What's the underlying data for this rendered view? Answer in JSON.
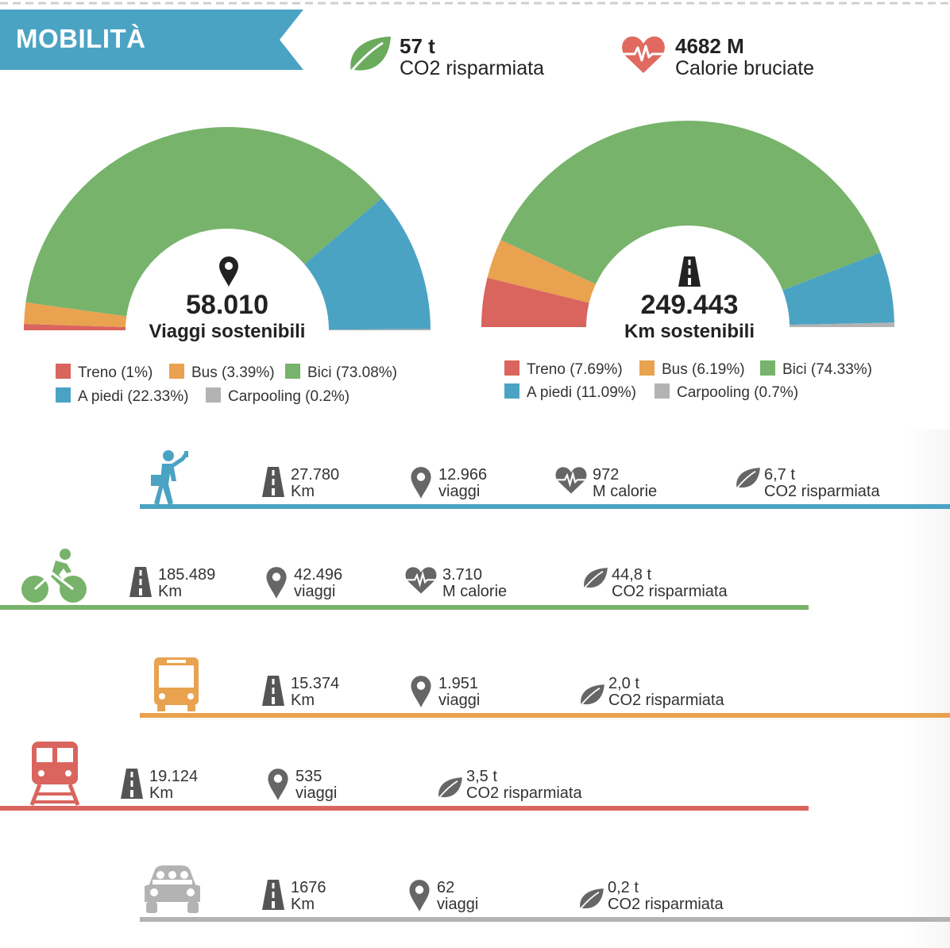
{
  "header": {
    "title": "MOBILITÀ",
    "banner_color": "#4ba3c3",
    "co2": {
      "value": "57 t",
      "label": "CO2 risparmiata",
      "icon": "leaf-icon",
      "color": "#6aab5c"
    },
    "calories": {
      "value": "4682 M",
      "label": "Calorie bruciate",
      "icon": "heart-pulse-icon",
      "color": "#e06a5f"
    }
  },
  "chart_data": [
    {
      "type": "pie",
      "style": "semi-donut",
      "center_value": "58.010",
      "center_label": "Viaggi sostenibili",
      "center_icon": "map-pin-icon",
      "slices": [
        {
          "label": "Treno (1%)",
          "value": 1,
          "color": "#d9655e"
        },
        {
          "label": "Bus (3.39%)",
          "value": 3.39,
          "color": "#e9a24f"
        },
        {
          "label": "Bici (73.08%)",
          "value": 73.08,
          "color": "#77b36a"
        },
        {
          "label": "A piedi (22.33%)",
          "value": 22.33,
          "color": "#4ba3c3"
        },
        {
          "label": "Carpooling (0.2%)",
          "value": 0.2,
          "color": "#b3b3b3"
        }
      ]
    },
    {
      "type": "pie",
      "style": "semi-donut",
      "center_value": "249.443",
      "center_label": "Km sostenibili",
      "center_icon": "road-icon",
      "slices": [
        {
          "label": "Treno (7.69%)",
          "value": 7.69,
          "color": "#d9655e"
        },
        {
          "label": "Bus (6.19%)",
          "value": 6.19,
          "color": "#e9a24f"
        },
        {
          "label": "Bici (74.33%)",
          "value": 74.33,
          "color": "#77b36a"
        },
        {
          "label": "A piedi (11.09%)",
          "value": 11.09,
          "color": "#4ba3c3"
        },
        {
          "label": "Carpooling (0.7%)",
          "value": 0.7,
          "color": "#b3b3b3"
        }
      ]
    }
  ],
  "modes": [
    {
      "name": "walking",
      "icon": "walking-person-icon",
      "color": "#4ba3c3",
      "stats": [
        {
          "icon": "road-icon",
          "l1": "27.780",
          "l2": "Km"
        },
        {
          "icon": "map-pin-icon",
          "l1": "12.966",
          "l2": "viaggi"
        },
        {
          "icon": "heart-pulse-icon",
          "l1": "972",
          "l2": "M calorie"
        },
        {
          "icon": "leaf-icon",
          "l1": "6,7 t",
          "l2": "CO2 risparmiata"
        }
      ]
    },
    {
      "name": "bike",
      "icon": "cyclist-icon",
      "color": "#77b36a",
      "stats": [
        {
          "icon": "road-icon",
          "l1": "185.489",
          "l2": "Km"
        },
        {
          "icon": "map-pin-icon",
          "l1": "42.496",
          "l2": "viaggi"
        },
        {
          "icon": "heart-pulse-icon",
          "l1": "3.710",
          "l2": "M calorie"
        },
        {
          "icon": "leaf-icon",
          "l1": "44,8 t",
          "l2": "CO2 risparmiata"
        }
      ]
    },
    {
      "name": "bus",
      "icon": "bus-icon",
      "color": "#e9a24f",
      "stats": [
        {
          "icon": "road-icon",
          "l1": "15.374",
          "l2": "Km"
        },
        {
          "icon": "map-pin-icon",
          "l1": "1.951",
          "l2": "viaggi"
        },
        {
          "icon": "leaf-icon",
          "l1": "2,0 t",
          "l2": "CO2 risparmiata"
        }
      ]
    },
    {
      "name": "train",
      "icon": "train-icon",
      "color": "#d9655e",
      "stats": [
        {
          "icon": "road-icon",
          "l1": "19.124",
          "l2": "Km"
        },
        {
          "icon": "map-pin-icon",
          "l1": "535",
          "l2": "viaggi"
        },
        {
          "icon": "leaf-icon",
          "l1": "3,5 t",
          "l2": "CO2 risparmiata"
        }
      ]
    },
    {
      "name": "carpooling",
      "icon": "car-icon",
      "color": "#b3b3b3",
      "stats": [
        {
          "icon": "road-icon",
          "l1": "1676",
          "l2": "Km"
        },
        {
          "icon": "map-pin-icon",
          "l1": "62",
          "l2": "viaggi"
        },
        {
          "icon": "leaf-icon",
          "l1": "0,2 t",
          "l2": "CO2 risparmiata"
        }
      ]
    }
  ]
}
